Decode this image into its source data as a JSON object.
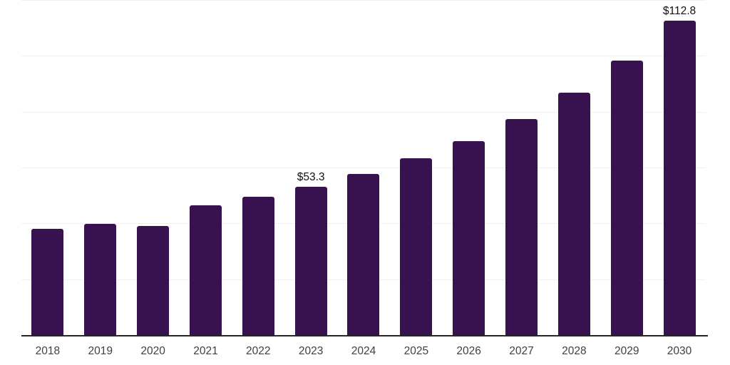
{
  "chart_data": {
    "type": "bar",
    "categories": [
      "2018",
      "2019",
      "2020",
      "2021",
      "2022",
      "2023",
      "2024",
      "2025",
      "2026",
      "2027",
      "2028",
      "2029",
      "2030"
    ],
    "values": [
      38.3,
      40.0,
      39.2,
      46.7,
      49.7,
      53.3,
      58.0,
      63.7,
      69.6,
      77.5,
      87.0,
      98.5,
      112.8
    ],
    "data_labels": {
      "2023": "$53.3",
      "2030": "$112.8"
    },
    "title": "",
    "xlabel": "",
    "ylabel": "",
    "ylim": [
      0,
      120
    ],
    "grid": true,
    "gridline_values": [
      0,
      20,
      40,
      60,
      80,
      100,
      120
    ],
    "y_tick_labels_visible": false,
    "legend": "none",
    "colors": {
      "bar": "#38124e",
      "gridline": "#f0f0f0",
      "axis_line": "#262626",
      "tick_label": "#404040",
      "data_label": "#111111",
      "background": "#ffffff"
    }
  }
}
